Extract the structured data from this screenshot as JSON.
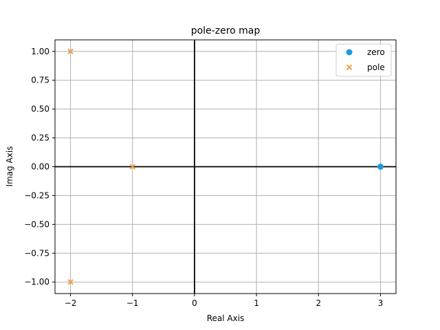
{
  "chart_data": {
    "type": "scatter",
    "title": "pole-zero map",
    "xlabel": "Real Axis",
    "ylabel": "Imag Axis",
    "xlim": [
      -2.25,
      3.25
    ],
    "ylim": [
      -1.1,
      1.1
    ],
    "grid": true,
    "legend_position": "top-right",
    "x_ticks": [
      {
        "value": -2,
        "label": "−2"
      },
      {
        "value": -1,
        "label": "−1"
      },
      {
        "value": 0,
        "label": "0"
      },
      {
        "value": 1,
        "label": "1"
      },
      {
        "value": 2,
        "label": "2"
      },
      {
        "value": 3,
        "label": "3"
      }
    ],
    "y_ticks": [
      {
        "value": 1.0,
        "label": "1.00"
      },
      {
        "value": 0.75,
        "label": "0.75"
      },
      {
        "value": 0.5,
        "label": "0.50"
      },
      {
        "value": 0.25,
        "label": "0.25"
      },
      {
        "value": 0.0,
        "label": "0.00"
      },
      {
        "value": -0.25,
        "label": "−0.25"
      },
      {
        "value": -0.5,
        "label": "−0.50"
      },
      {
        "value": -0.75,
        "label": "−0.75"
      },
      {
        "value": -1.0,
        "label": "−1.00"
      }
    ],
    "series": [
      {
        "name": "zero",
        "marker": "circle",
        "color": "#1f9ae0",
        "points": [
          {
            "x": 3,
            "y": 0
          }
        ]
      },
      {
        "name": "pole",
        "marker": "x",
        "color": "#f0a04b",
        "points": [
          {
            "x": -2,
            "y": 1
          },
          {
            "x": -1,
            "y": 0
          },
          {
            "x": -2,
            "y": -1
          }
        ]
      }
    ]
  }
}
